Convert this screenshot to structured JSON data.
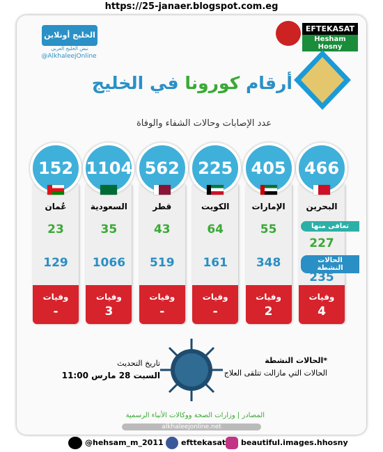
{
  "header": {
    "url": "https://25-janaer.blogspot.com.eg",
    "brand": "EFTEKASAT",
    "brand_sub": "Hesham Hosny",
    "logo": "الخليج أونلاين",
    "logo_sub": "نبض الخليج العربي",
    "handle": "@AlkhaleejOnline"
  },
  "title": {
    "part1": "أرقام ",
    "part2": "كورونا",
    "part3": " في الخليج"
  },
  "subtitle": "عدد الإصابات وحالات الشفاء والوفاة",
  "labels": {
    "recovered": "تعافى منها",
    "active": "الحالات النشطة",
    "deaths": "وفيات"
  },
  "countries": [
    {
      "name": "البحرين",
      "total": "466",
      "recovered": "227",
      "active": "235",
      "deaths": "4"
    },
    {
      "name": "الإمارات",
      "total": "405",
      "recovered": "55",
      "active": "348",
      "deaths": "2"
    },
    {
      "name": "الكويت",
      "total": "225",
      "recovered": "64",
      "active": "161",
      "deaths": "-"
    },
    {
      "name": "قطر",
      "total": "562",
      "recovered": "43",
      "active": "519",
      "deaths": "-"
    },
    {
      "name": "السعودية",
      "total": "1104",
      "recovered": "35",
      "active": "1066",
      "deaths": "3"
    },
    {
      "name": "عُمان",
      "total": "152",
      "recovered": "23",
      "active": "129",
      "deaths": "-"
    }
  ],
  "note": {
    "title": "*الحالات النشطة",
    "text": "الحالات التي مازالت تتلقى العلاج"
  },
  "update": {
    "label": "تاريخ التحديث",
    "date": "السبت 28 مارس 11:00"
  },
  "sources": "المصادر | وزارات الصحة ووكالات الأنباء الرسمية",
  "site": "alkhaleejonline.net",
  "footer": {
    "twitter": "@hehsam_m_2011",
    "facebook": "efttekasat",
    "instagram": "beautiful.images.hhosny"
  }
}
